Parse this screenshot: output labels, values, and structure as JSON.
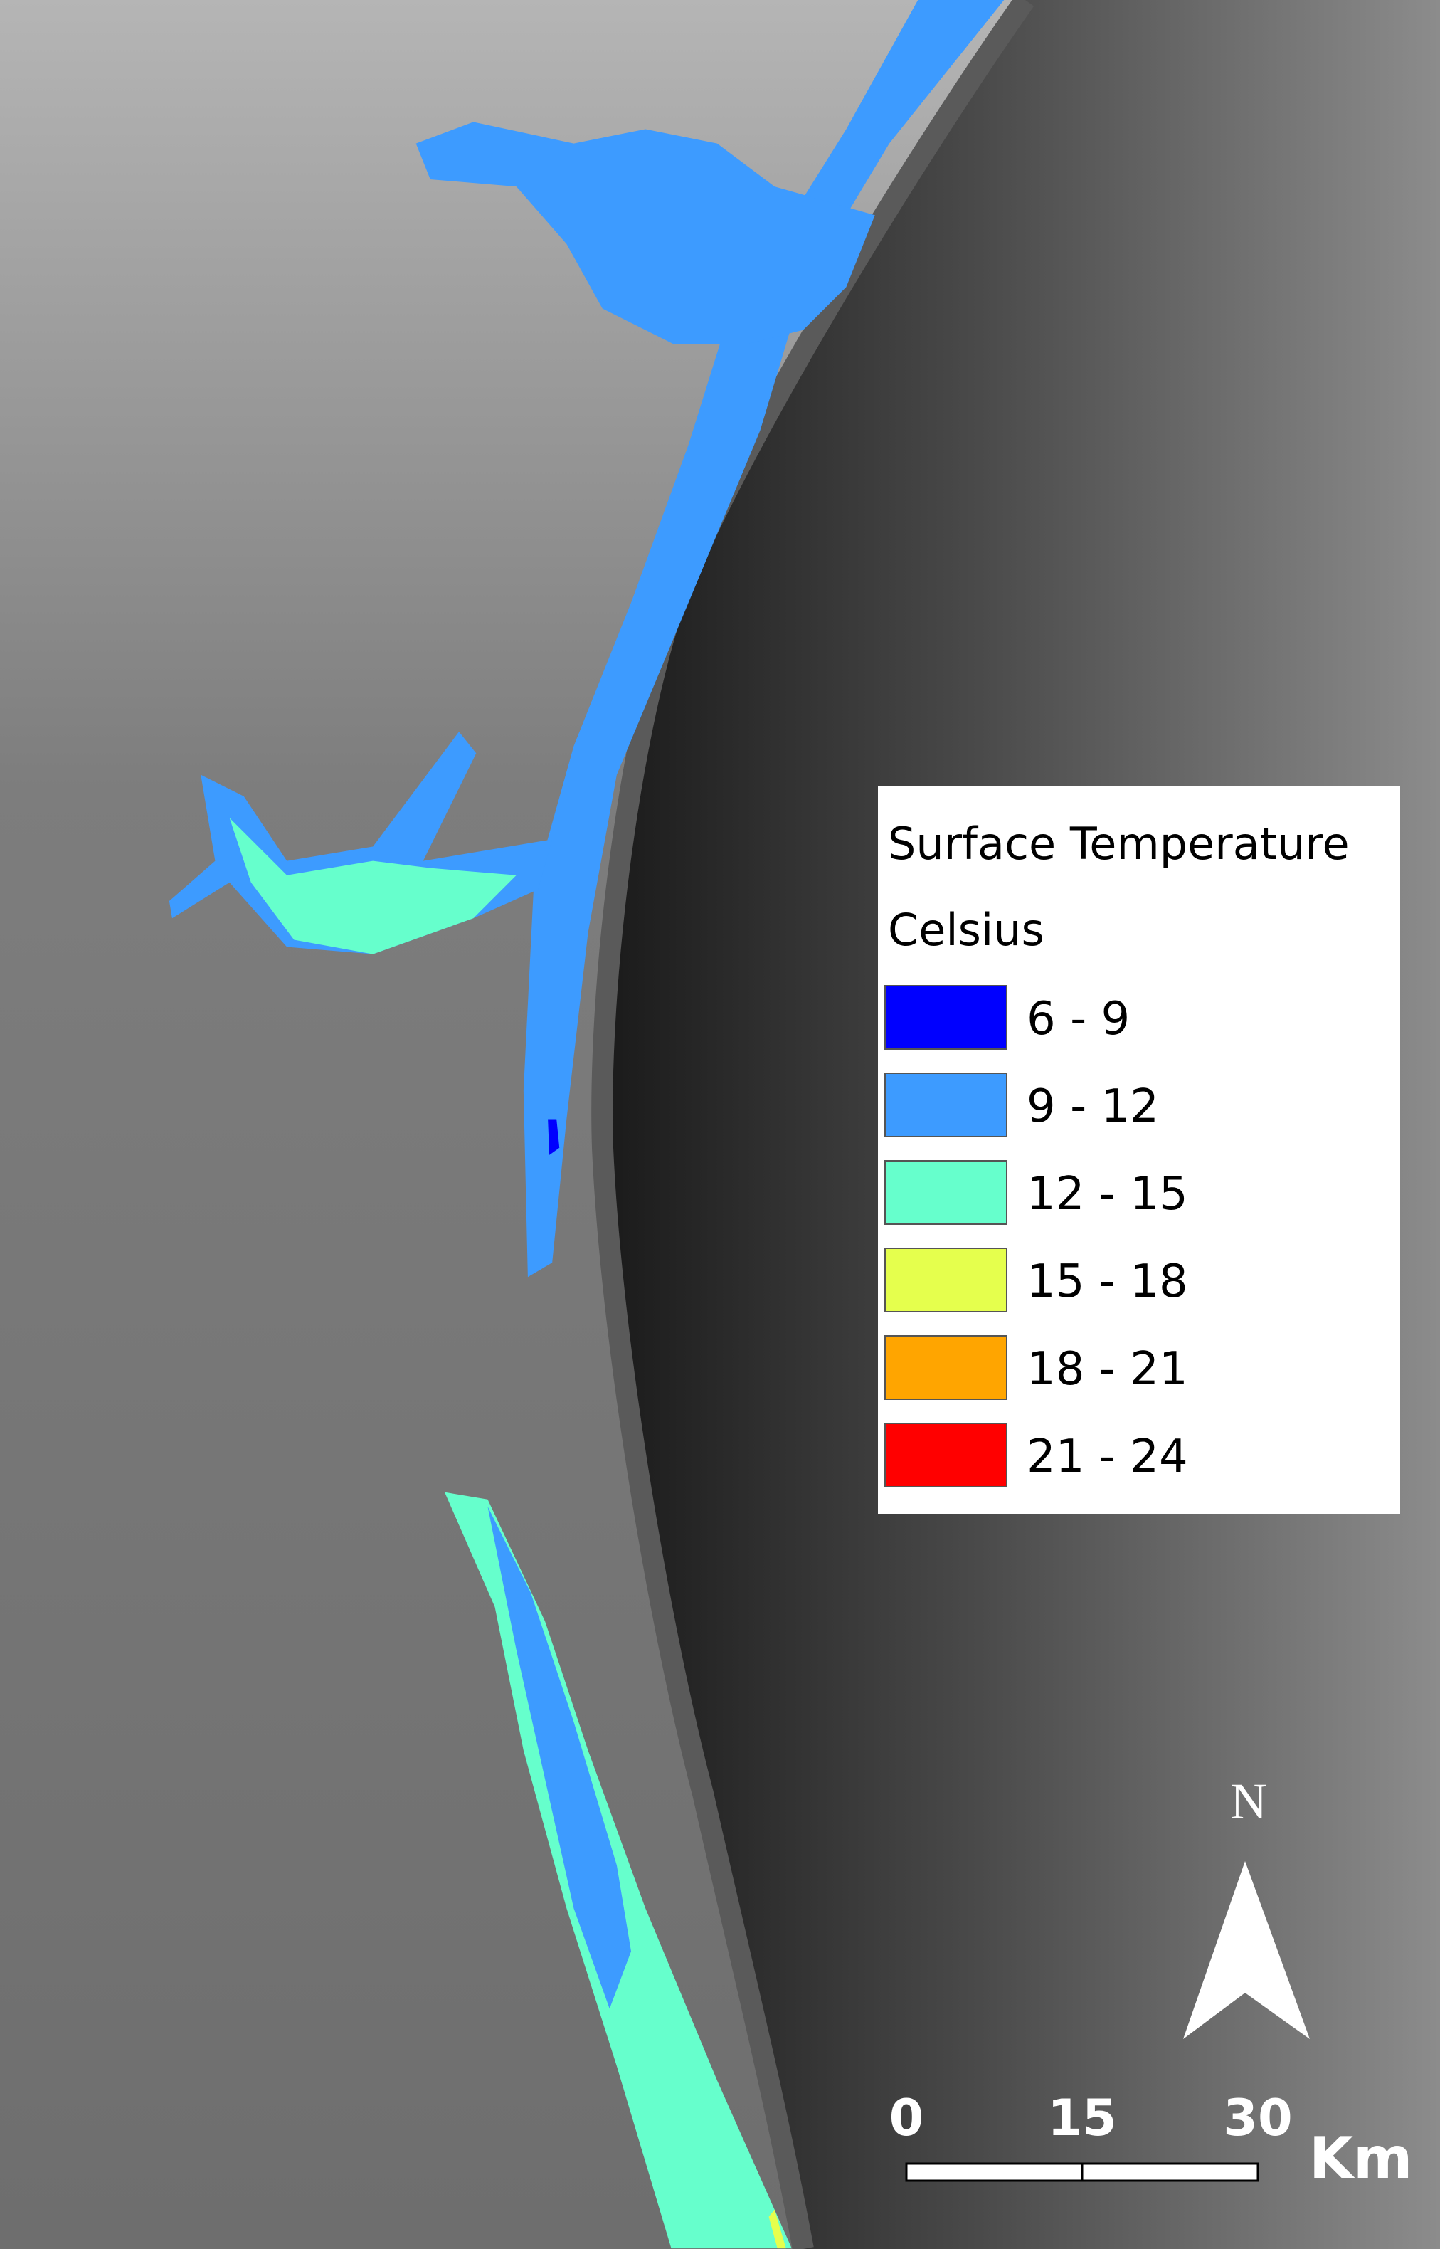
{
  "legend": {
    "title": "Surface Temperature",
    "subtitle": "Celsius",
    "items": [
      {
        "label": "6 - 9",
        "color": "#0000ff"
      },
      {
        "label": "9 - 12",
        "color": "#3d9bff"
      },
      {
        "label": "12 - 15",
        "color": "#66ffcc"
      },
      {
        "label": "15 - 18",
        "color": "#e5ff4d"
      },
      {
        "label": "18 - 21",
        "color": "#ffa500"
      },
      {
        "label": "21 - 24",
        "color": "#ff0000"
      }
    ]
  },
  "north_arrow": {
    "label": "N"
  },
  "scale_bar": {
    "ticks": [
      0,
      15,
      30
    ],
    "unit": "Km"
  }
}
